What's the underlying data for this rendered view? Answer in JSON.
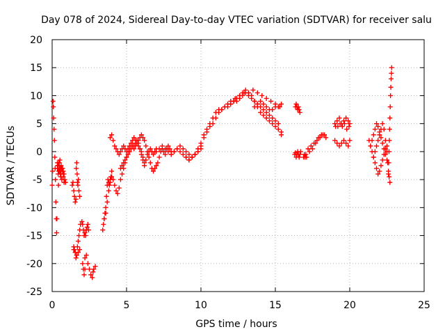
{
  "chart_data": {
    "type": "scatter",
    "title": "Day 078 of 2024, Sidereal Day-to-day VTEC variation (SDTVAR) for receiver salu",
    "xlabel": "GPS time / hours",
    "ylabel": "SDTVAR / TECUs",
    "xlim": [
      0,
      25
    ],
    "ylim": [
      -25,
      20
    ],
    "xticks": [
      0,
      5,
      10,
      15,
      20,
      25
    ],
    "yticks": [
      -25,
      -20,
      -15,
      -10,
      -5,
      0,
      5,
      10,
      15,
      20
    ],
    "grid": true,
    "marker": "+",
    "color": "#ff0000",
    "series": [
      {
        "name": "SDTVAR",
        "x": [
          0.0,
          0.03,
          0.06,
          0.08,
          0.1,
          0.13,
          0.15,
          0.18,
          0.2,
          0.22,
          0.25,
          0.28,
          0.3,
          0.32,
          0.35,
          0.38,
          0.4,
          0.42,
          0.45,
          0.48,
          0.5,
          0.52,
          0.55,
          0.58,
          0.6,
          0.62,
          0.65,
          0.7,
          0.75,
          0.8,
          0.35,
          0.38,
          0.4,
          0.42,
          0.45,
          0.5,
          0.55,
          0.6,
          0.65,
          0.7,
          0.75,
          0.8,
          0.85,
          0.9,
          1.35,
          1.4,
          1.45,
          1.5,
          1.55,
          1.6,
          1.62,
          1.65,
          1.68,
          1.7,
          1.73,
          1.76,
          1.8,
          1.85,
          1.45,
          1.55,
          1.65,
          1.75,
          1.85,
          1.45,
          1.5,
          1.55,
          1.6,
          1.65,
          1.7,
          1.75,
          1.8,
          1.85,
          1.9,
          2.0,
          2.05,
          2.1,
          2.15,
          2.2,
          2.25,
          2.3,
          2.35,
          2.4,
          2.45,
          2.05,
          2.1,
          2.15,
          2.2,
          2.2,
          2.3,
          2.4,
          2.5,
          2.6,
          2.7,
          2.75,
          2.8,
          2.9,
          3.4,
          3.45,
          3.5,
          3.55,
          3.6,
          3.65,
          3.7,
          3.75,
          3.8,
          3.85,
          3.9,
          3.95,
          4.0,
          3.5,
          3.6,
          3.7,
          3.8,
          3.9,
          4.0,
          4.1,
          4.2,
          4.3,
          4.4,
          4.5,
          4.6,
          4.7,
          4.8,
          4.9,
          5.0,
          3.9,
          4.0,
          4.1,
          4.2,
          4.3,
          4.4,
          4.5,
          4.6,
          4.7,
          4.8,
          4.9,
          5.0,
          5.1,
          5.2,
          5.3,
          5.4,
          5.5,
          5.6,
          5.7,
          5.8,
          5.9,
          6.0,
          6.1,
          6.2,
          6.3,
          6.4,
          6.5,
          6.6,
          6.7,
          6.8,
          6.9,
          7.0,
          4.6,
          4.7,
          4.8,
          4.9,
          5.0,
          5.1,
          5.2,
          5.3,
          5.4,
          5.5,
          5.6,
          5.7,
          5.8,
          5.9,
          6.0,
          6.1,
          6.2,
          5.5,
          5.6,
          5.7,
          5.8,
          5.9,
          6.0,
          6.1,
          6.2,
          6.3,
          6.4,
          6.5,
          6.6,
          6.7,
          6.8,
          6.9,
          7.0,
          7.1,
          7.2,
          7.3,
          7.4,
          7.5,
          7.6,
          7.7,
          7.8,
          7.9,
          8.0,
          7.0,
          7.2,
          7.4,
          7.6,
          7.8,
          8.0,
          8.2,
          8.4,
          8.6,
          8.8,
          9.0,
          9.2,
          9.4,
          9.6,
          9.8,
          10.0,
          8.0,
          8.2,
          8.4,
          8.6,
          8.8,
          9.0,
          9.2,
          9.4,
          9.6,
          9.8,
          10.0,
          10.2,
          10.4,
          10.6,
          10.8,
          11.0,
          11.2,
          11.4,
          11.6,
          11.8,
          12.0,
          12.2,
          12.4,
          12.6,
          12.8,
          13.0,
          13.2,
          13.4,
          13.6,
          13.8,
          14.0,
          14.2,
          14.4,
          14.6,
          14.8,
          15.0,
          15.2,
          15.4,
          9.0,
          9.2,
          9.4,
          9.6,
          9.8,
          10.0,
          10.2,
          10.4,
          10.6,
          10.8,
          11.0,
          11.2,
          11.4,
          11.6,
          11.8,
          12.0,
          12.2,
          12.4,
          12.6,
          12.8,
          13.0,
          13.2,
          13.4,
          13.6,
          13.8,
          14.0,
          14.2,
          14.4,
          14.6,
          14.8,
          15.0,
          15.2,
          15.4,
          12.0,
          12.3,
          12.6,
          12.9,
          13.2,
          13.5,
          13.8,
          14.1,
          14.4,
          14.7,
          15.0,
          15.3,
          13.6,
          13.8,
          14.0,
          14.2,
          14.4,
          14.6,
          14.8,
          15.0,
          15.2,
          15.4,
          16.35,
          16.4,
          16.45,
          16.5,
          16.55,
          16.6,
          16.65,
          16.3,
          16.35,
          16.4,
          16.45,
          16.5,
          16.55,
          16.6,
          16.65,
          16.7,
          16.9,
          16.95,
          17.0,
          17.05,
          17.1,
          17.2,
          17.4,
          17.6,
          17.8,
          18.0,
          18.2,
          18.4,
          17.3,
          17.5,
          17.7,
          17.9,
          18.1,
          18.3,
          19.0,
          19.15,
          19.3,
          19.45,
          19.6,
          19.75,
          19.9,
          20.0,
          19.05,
          19.2,
          19.35,
          19.5,
          19.65,
          19.8,
          19.95,
          19.0,
          19.15,
          19.3,
          19.45,
          19.6,
          19.75,
          19.9,
          20.0,
          21.3,
          21.4,
          21.5,
          21.6,
          21.7,
          21.8,
          21.9,
          22.0,
          22.1,
          22.2,
          22.3,
          22.4,
          22.5,
          21.4,
          21.5,
          21.6,
          21.7,
          21.8,
          21.9,
          22.0,
          22.1,
          22.2,
          22.3,
          22.4,
          22.5,
          21.6,
          21.7,
          21.8,
          21.9,
          22.0,
          22.1,
          22.2,
          22.3,
          22.4,
          22.5,
          22.55,
          22.6,
          22.65,
          22.7,
          22.6,
          22.62,
          22.64,
          22.66,
          22.68,
          22.7,
          22.72,
          22.74,
          22.76,
          22.78,
          22.8,
          22.82
        ],
        "y": [
          -6.0,
          -3.5,
          9.0,
          8.0,
          6.0,
          4.0,
          2.0,
          -1.0,
          -3.0,
          -5.0,
          -9.0,
          -12.0,
          -14.5,
          -12.0,
          -3.0,
          -2.5,
          -4.0,
          -6.0,
          -3.5,
          -2.0,
          -3.0,
          -1.5,
          -3.0,
          -4.5,
          -4.0,
          -3.0,
          -5.0,
          -3.0,
          -4.5,
          -5.5,
          -2.0,
          -2.5,
          -3.0,
          -2.5,
          -2.0,
          -3.5,
          -4.0,
          -2.5,
          -3.0,
          -3.5,
          -3.5,
          -4.0,
          -5.0,
          -5.5,
          -6.0,
          -5.5,
          -7.0,
          -8.0,
          -9.0,
          -8.5,
          -3.0,
          -2.0,
          -4.0,
          -5.5,
          -6.0,
          -5.0,
          -7.0,
          -8.0,
          -17.5,
          -18.0,
          -18.5,
          -18.0,
          -17.5,
          -17.0,
          -17.5,
          -18.0,
          -19.0,
          -18.5,
          -17.0,
          -16.0,
          -15.0,
          -14.0,
          -13.0,
          -12.5,
          -13.0,
          -14.0,
          -15.0,
          -14.5,
          -15.0,
          -14.0,
          -13.5,
          -13.0,
          -14.0,
          -20.0,
          -21.0,
          -22.0,
          -21.0,
          -19.0,
          -18.5,
          -20.0,
          -21.0,
          -22.0,
          -22.5,
          -21.5,
          -21.0,
          -20.5,
          -14.0,
          -13.0,
          -12.0,
          -11.0,
          -10.0,
          -8.0,
          -6.0,
          -5.0,
          -5.5,
          -6.0,
          -5.0,
          -4.5,
          -3.5,
          -12.0,
          -11.0,
          -9.0,
          -7.0,
          -5.5,
          -4.5,
          -5.0,
          -6.0,
          -7.0,
          -7.5,
          -6.5,
          -5.0,
          -4.0,
          -3.0,
          -2.0,
          -1.0,
          2.5,
          3.0,
          2.0,
          1.0,
          0.5,
          0.0,
          -0.5,
          0.0,
          0.5,
          1.0,
          0.5,
          0.0,
          0.5,
          1.0,
          1.5,
          2.0,
          2.5,
          2.0,
          1.5,
          1.0,
          0.5,
          0.0,
          -1.0,
          -2.0,
          -1.5,
          -0.5,
          0.0,
          0.5,
          0.0,
          -0.5,
          0.0,
          0.5,
          -3.0,
          -2.5,
          -2.0,
          -1.5,
          -1.0,
          -0.5,
          0.0,
          0.5,
          1.0,
          1.0,
          1.5,
          2.0,
          1.5,
          0.5,
          -0.5,
          -1.5,
          -2.5,
          0.5,
          1.0,
          1.5,
          2.0,
          2.5,
          3.0,
          2.5,
          2.0,
          1.0,
          0.0,
          -1.0,
          -2.0,
          -3.0,
          -3.5,
          -3.0,
          -2.5,
          -2.0,
          -1.0,
          0.0,
          0.5,
          0.0,
          -0.5,
          0.5,
          1.0,
          0.5,
          0.0,
          0.0,
          0.5,
          1.0,
          0.5,
          0.0,
          -0.5,
          0.0,
          0.5,
          1.0,
          0.5,
          0.0,
          -0.5,
          -1.0,
          -0.5,
          0.0,
          0.5,
          -0.5,
          0.0,
          0.5,
          0.0,
          -0.5,
          -1.0,
          -1.5,
          -1.0,
          -0.5,
          0.0,
          1.0,
          2.5,
          3.5,
          4.5,
          5.0,
          6.0,
          7.0,
          7.5,
          8.0,
          8.0,
          8.5,
          9.0,
          9.0,
          9.5,
          10.0,
          10.5,
          10.0,
          9.5,
          9.0,
          8.0,
          7.0,
          6.5,
          6.0,
          5.5,
          5.0,
          4.5,
          4.0,
          3.5,
          -1.0,
          -1.5,
          -1.0,
          -0.5,
          0.5,
          1.5,
          3.0,
          4.0,
          5.0,
          6.0,
          7.0,
          7.5,
          7.5,
          8.0,
          8.5,
          8.5,
          9.0,
          9.5,
          10.0,
          10.5,
          11.0,
          10.5,
          10.0,
          9.0,
          8.5,
          8.0,
          7.5,
          7.0,
          6.5,
          6.0,
          5.5,
          5.0,
          3.0,
          9.0,
          9.5,
          10.0,
          10.5,
          10.5,
          11.0,
          10.5,
          10.0,
          9.5,
          9.0,
          8.5,
          8.0,
          8.0,
          8.5,
          9.0,
          8.5,
          8.0,
          7.5,
          7.5,
          8.0,
          8.0,
          8.5,
          8.0,
          8.5,
          8.0,
          7.5,
          8.0,
          7.5,
          7.0,
          -0.5,
          -0.2,
          -1.0,
          -0.5,
          0.0,
          -0.5,
          -1.0,
          -0.5,
          0.0,
          -1.0,
          -0.5,
          -1.0,
          -0.5,
          -1.0,
          0.5,
          1.0,
          1.5,
          2.0,
          2.5,
          3.0,
          2.5,
          0.0,
          0.5,
          1.5,
          2.5,
          3.0,
          3.0,
          5.0,
          5.5,
          6.0,
          5.0,
          5.5,
          6.0,
          5.5,
          5.0,
          4.5,
          4.5,
          5.0,
          4.5,
          5.0,
          4.0,
          4.5,
          2.0,
          1.5,
          1.0,
          1.5,
          2.0,
          1.5,
          1.0,
          2.0,
          2.0,
          1.0,
          0.0,
          -1.0,
          -2.0,
          -3.0,
          -4.0,
          -3.5,
          -2.5,
          -1.5,
          -0.5,
          0.5,
          1.0,
          1.0,
          2.0,
          3.0,
          4.0,
          5.0,
          4.5,
          3.5,
          2.5,
          1.5,
          0.5,
          -0.5,
          -1.5,
          -1.0,
          0.0,
          1.0,
          2.0,
          3.0,
          4.0,
          5.0,
          4.0,
          2.0,
          0.0,
          -2.0,
          -3.5,
          -4.5,
          -5.5,
          -4.0,
          -2.0,
          0.0,
          2.0,
          4.0,
          6.0,
          8.0,
          10.0,
          11.5,
          13.0,
          14.0,
          15.0
        ]
      }
    ]
  }
}
